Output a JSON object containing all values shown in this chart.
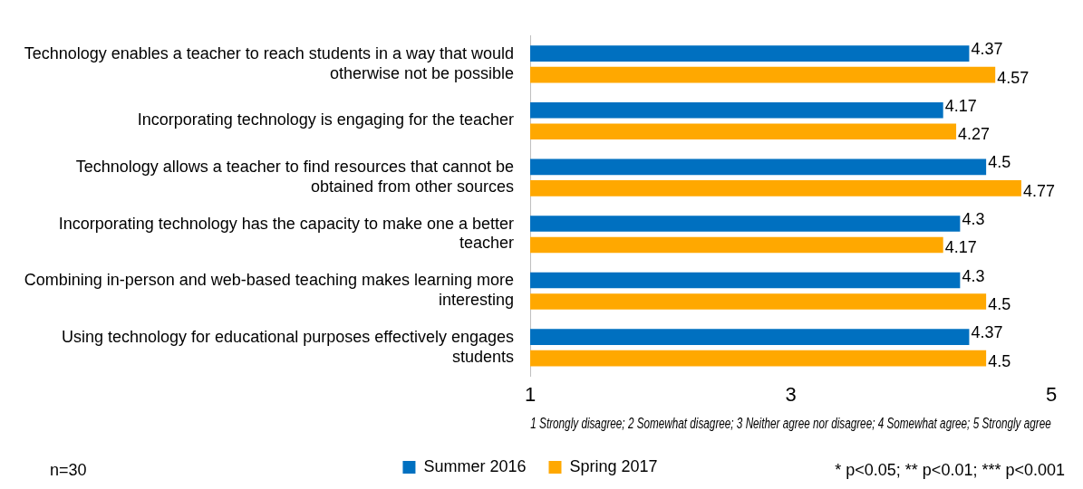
{
  "chart_data": {
    "type": "bar",
    "orientation": "horizontal",
    "categories": [
      "Technology enables a teacher to reach students in a way that would otherwise not be possible",
      "Incorporating technology is engaging for the teacher",
      "Technology allows a teacher to find resources that cannot be obtained from other sources",
      "Incorporating technology has the capacity to make one a better teacher",
      "Combining in-person and web-based teaching makes learning more interesting",
      "Using technology for educational purposes effectively engages students"
    ],
    "series": [
      {
        "name": "Summer 2016",
        "color": "#0070c0",
        "values": [
          4.37,
          4.17,
          4.5,
          4.3,
          4.3,
          4.37
        ]
      },
      {
        "name": "Spring 2017",
        "color": "#ffa800",
        "values": [
          4.57,
          4.27,
          4.77,
          4.17,
          4.5,
          4.5
        ]
      }
    ],
    "xlim": [
      1,
      5
    ],
    "xticks": [
      1,
      3,
      5
    ],
    "xlabel": "1 Strongly disagree; 2 Somewhat disagree; 3 Neither agree nor disagree; 4 Somewhat agree; 5 Strongly agree",
    "data_labels": true,
    "grid": false,
    "legend": "bottom",
    "annotations": [
      "n=30",
      "* p<0.05; ** p<0.01; *** p<0.001"
    ]
  }
}
